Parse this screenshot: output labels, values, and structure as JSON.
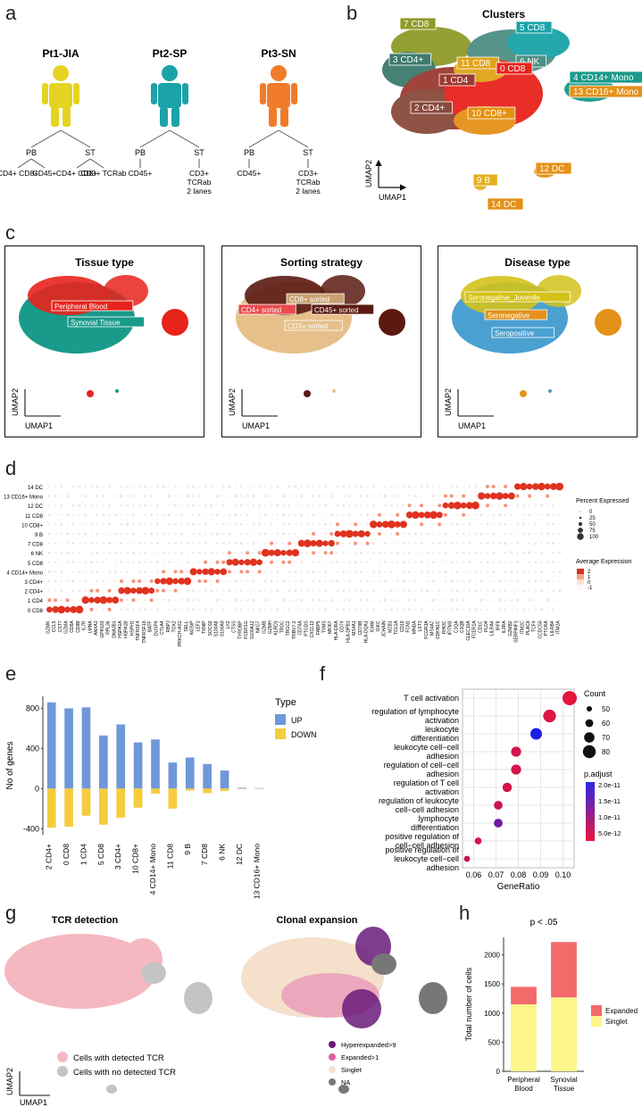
{
  "panels": {
    "a": {
      "letter": "a",
      "patients": [
        {
          "name": "Pt1-JIA",
          "color": "#e6d321",
          "pb": "PB",
          "st": "ST",
          "pb_sub": [
            "CD4+ CD8+",
            "CD45+"
          ],
          "st_sub": [
            "CD4+ CD8+",
            "CD3+ TCRab"
          ]
        },
        {
          "name": "Pt2-SP",
          "color": "#1aa3a8",
          "pb": "PB",
          "st": "ST",
          "pb_sub": [
            "CD45+"
          ],
          "st_sub": [
            "CD3+ TCRab 2 lanes"
          ]
        },
        {
          "name": "Pt3-SN",
          "color": "#f07b2a",
          "pb": "PB",
          "st": "ST",
          "pb_sub": [
            "CD45+"
          ],
          "st_sub": [
            "CD3+ TCRab 2 lanes"
          ]
        }
      ]
    },
    "b": {
      "letter": "b",
      "title": "Clusters",
      "labels": [
        {
          "text": "7 CD8",
          "color": "#8f9b2a"
        },
        {
          "text": "5 CD8",
          "color": "#1aa3a8"
        },
        {
          "text": "3 CD4+",
          "color": "#3e7a6e"
        },
        {
          "text": "11 CD8",
          "color": "#e0a31a"
        },
        {
          "text": "6 NK",
          "color": "#4d8f84"
        },
        {
          "text": "1 CD4",
          "color": "#9a3b30"
        },
        {
          "text": "0 CD8",
          "color": "#e8231c"
        },
        {
          "text": "2 CD4+",
          "color": "#8a4a3d"
        },
        {
          "text": "10 CD8+",
          "color": "#e4910f"
        },
        {
          "text": "4 CD14+ Mono",
          "color": "#1a9a8a"
        },
        {
          "text": "13 CD16+ Mono",
          "color": "#e4911a"
        },
        {
          "text": "12 DC",
          "color": "#e4911a"
        },
        {
          "text": "9 B",
          "color": "#e4b020"
        },
        {
          "text": "14 DC",
          "color": "#e4911a"
        }
      ],
      "axis_x": "UMAP1",
      "axis_y": "UMAP2"
    },
    "c": {
      "letter": "c",
      "subpanels": [
        {
          "title": "Tissue type",
          "labels": [
            {
              "text": "Peripheral Blood",
              "color": "#e8231c"
            },
            {
              "text": "Synovial Tissue",
              "color": "#1a9a8a"
            }
          ]
        },
        {
          "title": "Sorting strategy",
          "labels": [
            {
              "text": "CD8+ sorted",
              "color": "#c8a070"
            },
            {
              "text": "CD4+ sorted",
              "color": "#e84a4a"
            },
            {
              "text": "CD45+ sorted",
              "color": "#5a1a12"
            },
            {
              "text": "CD3+ sorted",
              "color": "#e6c08a"
            }
          ]
        },
        {
          "title": "Disease type",
          "labels": [
            {
              "text": "Seronegative_Juvenile",
              "color": "#d4c21a"
            },
            {
              "text": "Seronegative",
              "color": "#e4911a"
            },
            {
              "text": "Seropositive",
              "color": "#4aa0d0"
            }
          ]
        }
      ],
      "axis_x": "UMAP1",
      "axis_y": "UMAP2"
    },
    "d": {
      "letter": "d",
      "rows": [
        "14 DC",
        "13 CD16+ Mono",
        "12 DC",
        "11 CD8",
        "10 CD8+",
        "9 B",
        "7 CD8",
        "6 NK",
        "5 CD8",
        "4 CD14+ Mono",
        "3 CD4+",
        "2 CD4+",
        "1 CD4",
        "0 CD8"
      ],
      "genes": [
        "GZMK",
        "CCL5",
        "CST7",
        "GZMA",
        "CD8A",
        "CD8B",
        "IL7R",
        "LMNA",
        "ANXA1",
        "GPR183",
        "RPL36",
        "DNAJB1",
        "HSPA1A",
        "HSPA1B",
        "HSPH1",
        "TNFRSF4",
        "TNFRSF18",
        "BATF",
        "DUSP4",
        "CTLA4",
        "RBPJ",
        "TOX2",
        "PRKCH-AS1",
        "SELL",
        "NOSIP",
        "LEF1",
        "TXNIP",
        "SOCS3",
        "S100A8",
        "S100A9",
        "LYZ",
        "CTSS",
        "TYROBP",
        "FCER1G",
        "S100A12",
        "NKG7",
        "GZMB",
        "GZMH",
        "KLRD1",
        "TRDC",
        "TRGC2",
        "TRBV7-2",
        "CD79A",
        "PTGDS",
        "CXCL13",
        "FABP5",
        "TYMS",
        "MKI67",
        "HLA-DRA",
        "CD74",
        "HLA-DPB1",
        "MS4A1",
        "CD79B",
        "HLA-DQA1",
        "IGHM",
        "IGKC",
        "JCHAIN",
        "MZB1",
        "TCL1A",
        "CD19",
        "FCN1",
        "MNDA",
        "LST1",
        "FCGR3A",
        "MS4A7",
        "CDKN1C",
        "RHOC",
        "IFITM3",
        "C1QA",
        "C1QB",
        "CLEC10A",
        "FCER1A",
        "CD1C",
        "PLD4",
        "LILRA4",
        "IRF8",
        "IL3RA",
        "GZMB2",
        "SERPINF1",
        "ITM2C",
        "PLAC8",
        "TCF4",
        "CCDC50",
        "PTCRA",
        "LILRB4",
        "ITM2A"
      ],
      "legend_size_title": "Percent Expressed",
      "legend_size_values": [
        "0",
        "25",
        "50",
        "75",
        "100"
      ],
      "legend_color_title": "Average Expression",
      "legend_color_values": [
        "2",
        "1",
        "0",
        "-1"
      ],
      "legend_color_colors": [
        "#d7301f",
        "#f4a582",
        "#fde0dd",
        "#fff7f3"
      ]
    },
    "e": {
      "letter": "e",
      "ylabel": "No of genes",
      "legend_title": "Type",
      "up_color": "#6f98d8",
      "down_color": "#f5cc3c"
    },
    "f": {
      "letter": "f",
      "xlabel": "GeneRatio",
      "count_title": "Count",
      "count_values": [
        "50",
        "60",
        "70",
        "80"
      ],
      "padj_title": "p.adjust",
      "padj_values": [
        "2.0e-11",
        "1.5e-11",
        "1.0e-11",
        "5.0e-12"
      ]
    },
    "g": {
      "letter": "g",
      "left_title": "TCR detection",
      "right_title": "Clonal expansion",
      "left_legend": [
        {
          "text": "Cells with detected TCR",
          "color": "#f5b8c0"
        },
        {
          "text": "Cells with no detected TCR",
          "color": "#c4c4c4"
        }
      ],
      "right_legend": [
        {
          "text": "Hyperexpanded>9",
          "color": "#6a1a7a"
        },
        {
          "text": "Expanded>1",
          "color": "#e060a0"
        },
        {
          "text": "Singlet",
          "color": "#f5e0cc"
        },
        {
          "text": "NA",
          "color": "#777777"
        }
      ],
      "axis_x": "UMAP1",
      "axis_y": "UMAP2"
    },
    "h": {
      "letter": "h",
      "annotation": "p < .05",
      "ylabel": "Total number of cells",
      "legend": [
        {
          "text": "Expanded",
          "color": "#f26a6a"
        },
        {
          "text": "Singlet",
          "color": "#fbf58a"
        }
      ]
    }
  },
  "chart_data": [
    {
      "type": "bar",
      "id": "e",
      "categories": [
        "2 CD4+",
        "0 CD8",
        "1 CD4",
        "5 CD8",
        "3 CD4+",
        "10 CD8+",
        "4 CD14+ Mono",
        "11 CD8",
        "9 B",
        "7 CD8",
        "6 NK",
        "12 DC",
        "13 CD16+ Mono"
      ],
      "series": [
        {
          "name": "UP",
          "values": [
            860,
            800,
            810,
            530,
            640,
            460,
            490,
            260,
            310,
            245,
            180,
            8,
            5
          ]
        },
        {
          "name": "DOWN",
          "values": [
            -390,
            -380,
            -270,
            -360,
            -290,
            -190,
            -50,
            -200,
            -20,
            -45,
            -25,
            -5,
            -3
          ]
        }
      ],
      "xlabel": "",
      "ylabel": "No of genes",
      "yticks": [
        -400,
        0,
        400,
        800
      ],
      "ylim": [
        -460,
        920
      ],
      "legend": "top-right"
    },
    {
      "type": "scatter",
      "id": "f",
      "categories": [
        "T cell activation",
        "regulation of lymphocyte activation",
        "leukocyte differentiation",
        "leukocyte cell−cell adhesion",
        "regulation of cell−cell adhesion",
        "regulation of T cell activation",
        "regulation of leukocyte cell−cell adhesion",
        "lymphocyte differentiation",
        "positive regulation of cell−cell adhesion",
        "positive regulation of leukocyte cell−cell adhesion"
      ],
      "x": [
        0.103,
        0.094,
        0.088,
        0.079,
        0.079,
        0.075,
        0.071,
        0.071,
        0.062,
        0.057
      ],
      "count": [
        85,
        78,
        73,
        66,
        66,
        63,
        60,
        60,
        52,
        48
      ],
      "p_adjust": [
        2.5e-12,
        3.5e-12,
        2e-11,
        4e-12,
        4e-12,
        4e-12,
        5e-12,
        1.3e-11,
        4e-12,
        5e-12
      ],
      "xlabel": "GeneRatio",
      "xticks": [
        0.06,
        0.07,
        0.08,
        0.09,
        0.1
      ],
      "xtick_labels": [
        "0.06",
        "0.07",
        "0.08",
        "0.09",
        "0.10"
      ],
      "xlim": [
        0.055,
        0.105
      ]
    },
    {
      "type": "bar",
      "id": "h",
      "categories": [
        "Peripheral Blood",
        "Synovial Tissue"
      ],
      "series": [
        {
          "name": "Singlet",
          "values": [
            1150,
            1270
          ]
        },
        {
          "name": "Expanded",
          "values": [
            300,
            950
          ]
        }
      ],
      "ylabel": "Total number of cells",
      "yticks": [
        0,
        500,
        1000,
        1500,
        2000
      ],
      "ylim": [
        0,
        2300
      ],
      "stacked": true,
      "legend": "right"
    }
  ]
}
